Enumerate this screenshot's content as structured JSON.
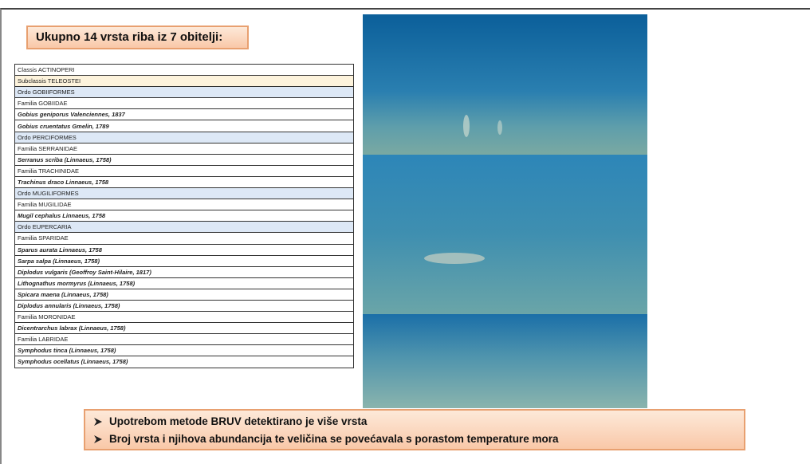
{
  "header": {
    "title": "Ukupno 14 vrsta riba iz 7 obitelji:"
  },
  "table": {
    "rows": [
      "Classis ACTINOPERI",
      "Subclassis TELEOSTEI",
      "Ordo GOBIIFORMES",
      "Familia GOBIIDAE",
      "Gobius geniporus Valenciennes, 1837",
      "Gobius cruentatus Gmelin, 1789",
      "Ordo PERCIFORMES",
      "Familia SERRANIDAE",
      "Serranus scriba (Linnaeus, 1758)",
      "Familia TRACHINIDAE",
      "Trachinus draco Linnaeus, 1758",
      "Ordo MUGILIFORMES",
      "Familia MUGILIDAE",
      "Mugil cephalus Linnaeus, 1758",
      "Ordo EUPERCARIA",
      "Familia SPARIDAE",
      "Sparus aurata Linnaeus, 1758",
      "Sarpa salpa (Linnaeus, 1758)",
      "Diplodus vulgaris (Geoffroy Saint-Hilaire, 1817)",
      "Lithognathus mormyrus (Linnaeus, 1758)",
      "Spicara maena (Linnaeus, 1758)",
      "Diplodus annularis (Linnaeus, 1758)",
      "Familia MORONIDAE",
      "Dicentrarchus labrax (Linnaeus, 1758)",
      "Familia LABRIDAE",
      "Symphodus tinca (Linnaeus, 1758)",
      "Symphodus ocellatus (Linnaeus, 1758)"
    ]
  },
  "bullets": [
    "Upotrebom metode BRUV detektirano je više vrsta",
    "Broj vrsta i njihova abundancija te veličina se povećavala s porastom temperature mora"
  ]
}
